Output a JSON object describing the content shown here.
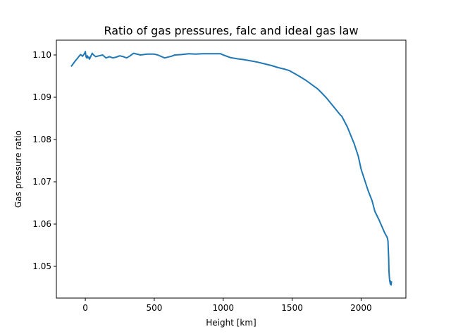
{
  "chart_data": {
    "type": "line",
    "title": "Ratio of gas pressures, falc and ideal gas law",
    "xlabel": "Height [km]",
    "ylabel": "Gas pressure ratio",
    "xlim": [
      -210,
      2325
    ],
    "ylim": [
      1.0425,
      1.1035
    ],
    "xticks": [
      0,
      500,
      1000,
      1500,
      2000
    ],
    "yticks": [
      1.05,
      1.06,
      1.07,
      1.08,
      1.09,
      1.1
    ],
    "xtick_labels": [
      "0",
      "500",
      "1000",
      "1500",
      "2000"
    ],
    "ytick_labels": [
      "1.05",
      "1.06",
      "1.07",
      "1.08",
      "1.09",
      "1.10"
    ],
    "grid": false,
    "legend": "none",
    "series": [
      {
        "color": "#1f77b4",
        "x": [
          -100,
          -75,
          -50,
          -35,
          -20,
          -5,
          0,
          5,
          10,
          15,
          20,
          25,
          30,
          40,
          50,
          60,
          75,
          100,
          125,
          150,
          175,
          200,
          225,
          250,
          275,
          300,
          325,
          350,
          400,
          450,
          500,
          525,
          575,
          625,
          650,
          700,
          750,
          800,
          850,
          900,
          950,
          980,
          1000,
          1050,
          1100,
          1150,
          1200,
          1250,
          1300,
          1350,
          1400,
          1450,
          1480,
          1550,
          1600,
          1650,
          1680,
          1700,
          1750,
          1800,
          1850,
          1860,
          1900,
          1950,
          1980,
          2000,
          2030,
          2050,
          2080,
          2100,
          2130,
          2150,
          2170,
          2190,
          2195,
          2200,
          2202,
          2204,
          2206,
          2208,
          2210,
          2212,
          2214,
          2216,
          2218,
          2220
        ],
        "y": [
          1.0974,
          1.0985,
          1.0995,
          1.1001,
          1.0997,
          1.1004,
          1.1008,
          1.0996,
          1.0993,
          1.0998,
          1.0993,
          1.0995,
          1.099,
          1.0997,
          1.1004,
          1.1,
          1.0996,
          1.0998,
          1.1,
          1.0993,
          1.0996,
          1.0993,
          1.0995,
          1.0998,
          1.0996,
          1.0993,
          1.0998,
          1.1004,
          1.1,
          1.1002,
          1.1002,
          1.1,
          1.0993,
          1.0997,
          1.1,
          1.1001,
          1.1003,
          1.1002,
          1.1003,
          1.1003,
          1.1003,
          1.1003,
          1.1,
          1.0994,
          1.0991,
          1.0989,
          1.0986,
          1.0983,
          1.0979,
          1.0975,
          1.097,
          1.0966,
          1.0963,
          1.095,
          1.094,
          1.0928,
          1.0921,
          1.0915,
          1.0898,
          1.0878,
          1.0858,
          1.0855,
          1.083,
          1.079,
          1.076,
          1.073,
          1.07,
          1.068,
          1.0655,
          1.063,
          1.061,
          1.0595,
          1.058,
          1.0568,
          1.056,
          1.052,
          1.049,
          1.048,
          1.047,
          1.0465,
          1.0462,
          1.0458,
          1.0465,
          1.046,
          1.0456,
          1.0463
        ]
      }
    ]
  }
}
